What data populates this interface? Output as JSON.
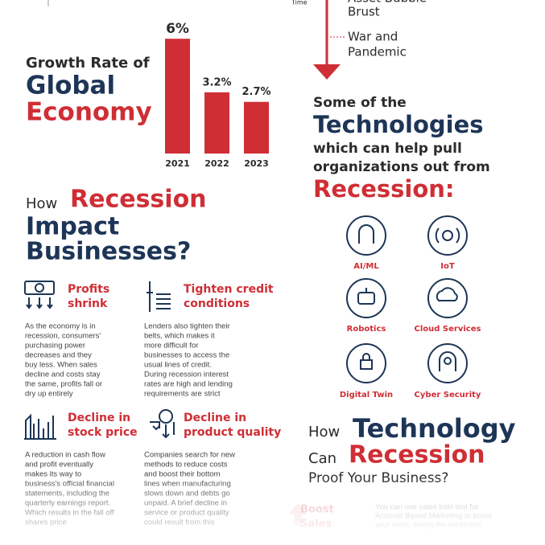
{
  "chart_data": {
    "type": "bar",
    "categories": [
      "2021",
      "2022",
      "2023"
    ],
    "values": [
      6,
      3.2,
      2.7
    ],
    "value_labels": [
      "6%",
      "3.2%",
      "2.7%"
    ],
    "color": "#cf2e35"
  },
  "timeline": {
    "axis_label": "Time",
    "events": [
      [
        "Asset Bubble",
        "Brust"
      ],
      [
        "War and",
        "Pandemic"
      ]
    ]
  },
  "growth": {
    "title_1": "Growth Rate  of",
    "title_2": "Global",
    "title_3": "Economy"
  },
  "impact": {
    "title_1": "How",
    "title_2": "Recession",
    "title_3": "Impact",
    "title_4": "Businesses?",
    "items": [
      {
        "title": [
          "Profits",
          "shrink"
        ],
        "text": [
          "As the economy is in",
          "recession, consumers'",
          "purchasing power",
          "decreases and they",
          "buy less. When sales",
          "decline and costs stay",
          "the same, profits fall or",
          "dry up entirely"
        ]
      },
      {
        "title": [
          "Tighten credit",
          "conditions"
        ],
        "text": [
          "Lenders also tighten their",
          "belts, which makes it",
          "more difficult for",
          "businesses to access the",
          "usual lines of credit.",
          "During recession interest",
          "rates are high and lending",
          "requirements are strict"
        ]
      },
      {
        "title": [
          "Decline in",
          "stock price"
        ],
        "text": [
          "A reduction in cash flow",
          "and profit eventually",
          "makes its way to",
          "business's official financial",
          "statements, including the",
          "quarterly earnings report.",
          "Which results in the fall off",
          "shares price"
        ]
      },
      {
        "title": [
          "Decline in",
          "product quality"
        ],
        "text": [
          "Companies search for new",
          "methods to reduce costs",
          "and boost their bottom",
          "lines when manufacturing",
          "slows down and debts go",
          "unpaid. A brief decline in",
          "service or product quality",
          "could result from this"
        ]
      }
    ]
  },
  "technologies": {
    "title_1": "Some of the",
    "title_2": "Technologies",
    "title_3": "which can help pull",
    "title_4": "organizations out from",
    "title_5": "Recession:",
    "items": [
      "AI/ML",
      "IoT",
      "Robotics",
      "Cloud Services",
      "Digital Twin",
      "Cyber Security"
    ]
  },
  "proof": {
    "title_1": "How",
    "title_2": "Technology",
    "title_3": "Can",
    "title_4": "Recession",
    "title_5": "Proof Your Business?",
    "boost": [
      "Boost",
      "Sales"
    ],
    "boost_text": [
      "You can use sales intel tool for",
      "Account Based Marketing to boost",
      "your sales during the recession"
    ]
  }
}
